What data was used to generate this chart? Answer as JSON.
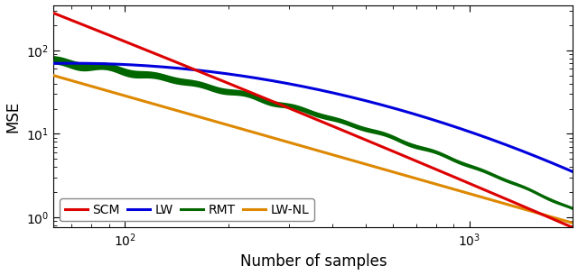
{
  "title": "",
  "xlabel": "Number of samples",
  "ylabel": "MSE",
  "x_min": 62,
  "x_max": 2000,
  "y_min": 0.75,
  "y_max": 350,
  "legend_labels": [
    "SCM",
    "LW",
    "RMT",
    "LW-NL"
  ],
  "colors": {
    "SCM": "#dd0000",
    "LW": "#0000dd",
    "RMT": "#006600",
    "LW-NL": "#dd8800"
  },
  "line_widths": {
    "SCM": 2.2,
    "LW": 2.2,
    "RMT": 2.2,
    "LW-NL": 2.2
  }
}
